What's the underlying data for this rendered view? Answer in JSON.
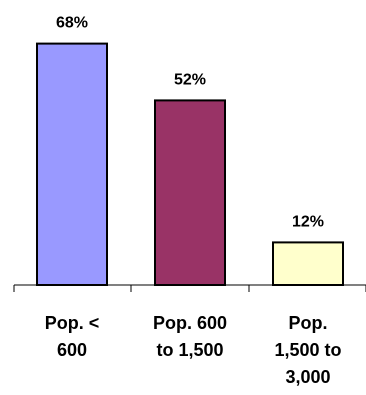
{
  "chart_data": {
    "type": "bar",
    "title": "",
    "xlabel": "",
    "ylabel": "",
    "categories": [
      "Pop. < 600",
      "Pop. 600 to 1,500",
      "Pop. 1,500 to 3,000"
    ],
    "category_label_lines": [
      [
        "Pop. <",
        "600"
      ],
      [
        "Pop. 600",
        "to 1,500"
      ],
      [
        "Pop.",
        "1,500 to",
        "3,000"
      ]
    ],
    "values": [
      68,
      52,
      12
    ],
    "data_labels": [
      "68%",
      "52%",
      "12%"
    ],
    "bar_colors": [
      "#9999ff",
      "#993366",
      "#ffffcc"
    ],
    "ylim": [
      0,
      100
    ],
    "grid": false,
    "legend": "none"
  }
}
